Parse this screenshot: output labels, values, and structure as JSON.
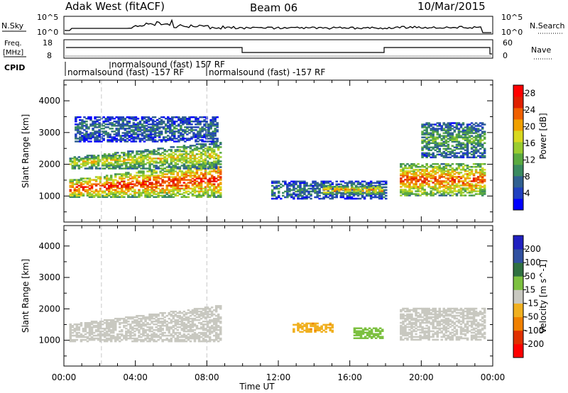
{
  "header": {
    "site": "Adak West (fitACF)",
    "beam": "Beam 06",
    "date": "10/Mar/2015"
  },
  "top_panels": {
    "nsky_label": "N.Sky",
    "nsky_ticks": [
      "10^5",
      "10^0"
    ],
    "nsearch_label": "N.Search",
    "nsearch_ticks": [
      "10^5",
      "10^0"
    ],
    "freq_label": "Freq.",
    "freq_unit": "[MHz]",
    "freq_ticks": [
      "18",
      "8"
    ],
    "nave_label": "Nave",
    "nave_ticks": [
      "60",
      "0"
    ],
    "cpid_label": "CPID",
    "cpid_segments": [
      {
        "text": "normalsound (fast) 157 RF",
        "row": "upper"
      },
      {
        "text": "normalsound (fast) -157 RF",
        "row": "lower"
      },
      {
        "text": "normalsound (fast) -157 RF",
        "row": "lower"
      }
    ]
  },
  "chart_data": [
    {
      "type": "heatmap",
      "name": "power",
      "ylabel": "Slant Range [km]",
      "xlabel": "Time UT",
      "x_ticks": [
        "00:00",
        "04:00",
        "08:00",
        "12:00",
        "16:00",
        "20:00",
        "00:00"
      ],
      "y_ticks": [
        "1000",
        "2000",
        "3000",
        "4000"
      ],
      "xlim_hours": [
        0,
        24
      ],
      "ylim_km": [
        180,
        4650
      ],
      "colorbar": {
        "label": "Power [dB]",
        "ticks": [
          "4",
          "8",
          "12",
          "16",
          "20",
          "24",
          "28"
        ],
        "range": [
          0,
          30
        ],
        "colors": [
          "#0000ff",
          "#2040c0",
          "#306090",
          "#3a8a60",
          "#5aaa40",
          "#9acc30",
          "#d8d820",
          "#f0a000",
          "#f06000",
          "#e02000",
          "#ff0000"
        ]
      },
      "echo_regions": [
        {
          "desc": "main F-region band",
          "t0": 0.3,
          "t1": 8.8,
          "r0": 950,
          "r1": 1500,
          "r1_end": 2100,
          "power_db": 26
        },
        {
          "desc": "upper band",
          "t0": 0.3,
          "t1": 8.8,
          "r0": 1850,
          "r1": 2200,
          "r1_end": 2700,
          "power_db": 18
        },
        {
          "desc": "high scatter",
          "t0": 0.6,
          "t1": 8.6,
          "r0": 2700,
          "r1": 3500,
          "power_db": 8
        },
        {
          "desc": "night arc",
          "t0": 11.6,
          "t1": 18.0,
          "r0": 900,
          "r1": 1450,
          "power_db": 9
        },
        {
          "desc": "afternoon enhancement",
          "t0": 14.5,
          "t1": 17.8,
          "r0": 1050,
          "r1": 1300,
          "power_db": 22
        },
        {
          "desc": "evening bands",
          "t0": 18.8,
          "t1": 23.6,
          "r0": 1000,
          "r1": 2000,
          "power_db": 24
        },
        {
          "desc": "evening upper streaks",
          "t0": 20.0,
          "t1": 23.6,
          "r0": 2200,
          "r1": 3300,
          "power_db": 12
        }
      ]
    },
    {
      "type": "heatmap",
      "name": "velocity",
      "ylabel": "Slant Range [km]",
      "xlabel": "Time UT",
      "x_ticks": [
        "00:00",
        "04:00",
        "08:00",
        "12:00",
        "16:00",
        "20:00",
        "00:00"
      ],
      "y_ticks": [
        "1000",
        "2000",
        "3000",
        "4000"
      ],
      "xlim_hours": [
        0,
        24
      ],
      "ylim_km": [
        180,
        4650
      ],
      "colorbar": {
        "label": "Velocity [m s^-1]",
        "ticks": [
          "200",
          "100",
          "50",
          "15",
          "-15",
          "-50",
          "-100",
          "-200"
        ],
        "range": [
          -250,
          250
        ],
        "colors": [
          "#2020c0",
          "#3050a0",
          "#2f7040",
          "#7cc040",
          "#c8c8c0",
          "#f0b020",
          "#f08000",
          "#e03000",
          "#ff0000"
        ]
      },
      "echo_regions": [
        {
          "desc": "ground scatter",
          "t0": 0.3,
          "t1": 8.8,
          "r0": 950,
          "r1": 1500,
          "r1_end": 2100,
          "velocity": 0
        },
        {
          "desc": "negative patch",
          "t0": 12.8,
          "t1": 15.0,
          "r0": 1250,
          "r1": 1550,
          "velocity": -40
        },
        {
          "desc": "positive patch",
          "t0": 16.2,
          "t1": 17.8,
          "r0": 1050,
          "r1": 1400,
          "velocity": 30
        },
        {
          "desc": "evening ground scatter",
          "t0": 18.8,
          "t1": 23.6,
          "r0": 1000,
          "r1": 2000,
          "velocity": 0
        }
      ]
    }
  ],
  "colors": {
    "frame": "#000000",
    "dashed_guides": "#c8c8c8"
  }
}
